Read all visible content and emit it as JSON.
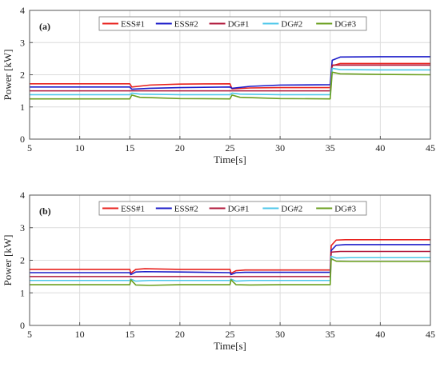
{
  "colors": {
    "ESS#1": "#e8211d",
    "ESS#2": "#1c1cc9",
    "DG#1": "#b0173a",
    "DG#2": "#4cc7ea",
    "DG#3": "#6a9f1e",
    "grid": "#dcdcdc",
    "axis": "#555555"
  },
  "chart_data": [
    {
      "type": "line",
      "panel_label": "(a)",
      "xlabel": "Time[s]",
      "ylabel": "Power [kW]",
      "xlim": [
        5,
        45
      ],
      "ylim": [
        0,
        4
      ],
      "xticks": [
        5,
        10,
        15,
        20,
        25,
        30,
        35,
        40,
        45
      ],
      "yticks": [
        0,
        1,
        2,
        3,
        4
      ],
      "grid": true,
      "legend_position": "top, horizontal",
      "series": [
        {
          "name": "ESS#1",
          "x": [
            5,
            15,
            15.2,
            17,
            20,
            25,
            25.2,
            27,
            30,
            35,
            35.2,
            36,
            40,
            45
          ],
          "y": [
            1.72,
            1.72,
            1.62,
            1.68,
            1.71,
            1.72,
            1.56,
            1.59,
            1.6,
            1.6,
            2.28,
            2.35,
            2.35,
            2.35
          ]
        },
        {
          "name": "ESS#2",
          "x": [
            5,
            15,
            15.2,
            17,
            20,
            25,
            25.2,
            27,
            30,
            35,
            35.2,
            36,
            40,
            45
          ],
          "y": [
            1.62,
            1.62,
            1.55,
            1.58,
            1.6,
            1.62,
            1.58,
            1.64,
            1.68,
            1.69,
            2.45,
            2.55,
            2.56,
            2.56
          ]
        },
        {
          "name": "DG#1",
          "x": [
            5,
            15,
            15.2,
            25,
            25.2,
            35,
            35.2,
            45
          ],
          "y": [
            1.5,
            1.5,
            1.5,
            1.5,
            1.5,
            1.5,
            2.3,
            2.3
          ]
        },
        {
          "name": "DG#2",
          "x": [
            5,
            15,
            15.2,
            16,
            20,
            25,
            25.2,
            26,
            30,
            35,
            35.2,
            36,
            40,
            45
          ],
          "y": [
            1.38,
            1.38,
            1.43,
            1.4,
            1.38,
            1.38,
            1.43,
            1.4,
            1.38,
            1.38,
            2.2,
            2.16,
            2.15,
            2.15
          ]
        },
        {
          "name": "DG#3",
          "x": [
            5,
            15,
            15.2,
            16,
            20,
            25,
            25.2,
            26,
            30,
            35,
            35.2,
            36,
            40,
            45
          ],
          "y": [
            1.25,
            1.25,
            1.37,
            1.3,
            1.26,
            1.25,
            1.37,
            1.3,
            1.26,
            1.25,
            2.08,
            2.03,
            2.01,
            2.0
          ]
        }
      ]
    },
    {
      "type": "line",
      "panel_label": "(b)",
      "xlabel": "Time[s]",
      "ylabel": "Power [kW]",
      "xlim": [
        5,
        45
      ],
      "ylim": [
        0,
        4
      ],
      "xticks": [
        5,
        10,
        15,
        20,
        25,
        30,
        35,
        40,
        45
      ],
      "yticks": [
        0,
        1,
        2,
        3,
        4
      ],
      "grid": true,
      "legend_position": "top, horizontal",
      "series": [
        {
          "name": "ESS#1",
          "x": [
            5,
            15,
            15.1,
            15.6,
            16.5,
            20,
            25,
            25.1,
            25.6,
            26.5,
            30,
            35,
            35.1,
            35.6,
            36.5,
            40,
            45
          ],
          "y": [
            1.72,
            1.72,
            1.6,
            1.72,
            1.74,
            1.72,
            1.72,
            1.6,
            1.68,
            1.7,
            1.7,
            1.7,
            2.45,
            2.62,
            2.63,
            2.63,
            2.63
          ]
        },
        {
          "name": "ESS#2",
          "x": [
            5,
            15,
            15.1,
            15.6,
            16.5,
            20,
            25,
            25.1,
            25.6,
            26.5,
            30,
            35,
            35.1,
            35.6,
            36.5,
            40,
            45
          ],
          "y": [
            1.62,
            1.62,
            1.56,
            1.64,
            1.65,
            1.64,
            1.62,
            1.56,
            1.62,
            1.63,
            1.63,
            1.63,
            2.3,
            2.46,
            2.48,
            2.48,
            2.48
          ]
        },
        {
          "name": "DG#1",
          "x": [
            5,
            15,
            15.1,
            16,
            25,
            25.1,
            26,
            35,
            35.1,
            36,
            40,
            45
          ],
          "y": [
            1.5,
            1.5,
            1.5,
            1.5,
            1.5,
            1.5,
            1.5,
            1.5,
            2.25,
            2.27,
            2.27,
            2.27
          ]
        },
        {
          "name": "DG#2",
          "x": [
            5,
            15,
            15.1,
            15.6,
            17,
            20,
            25,
            25.1,
            25.6,
            27,
            30,
            35,
            35.1,
            35.6,
            37,
            40,
            45
          ],
          "y": [
            1.38,
            1.38,
            1.42,
            1.36,
            1.38,
            1.38,
            1.38,
            1.42,
            1.36,
            1.38,
            1.38,
            1.38,
            2.12,
            2.07,
            2.08,
            2.08,
            2.08
          ]
        },
        {
          "name": "DG#3",
          "x": [
            5,
            15,
            15.1,
            15.6,
            17,
            20,
            25,
            25.1,
            25.6,
            27,
            30,
            35,
            35.1,
            35.6,
            37,
            40,
            45
          ],
          "y": [
            1.25,
            1.25,
            1.4,
            1.24,
            1.23,
            1.25,
            1.25,
            1.4,
            1.25,
            1.24,
            1.25,
            1.25,
            2.05,
            1.97,
            1.96,
            1.96,
            1.96
          ]
        }
      ]
    }
  ]
}
